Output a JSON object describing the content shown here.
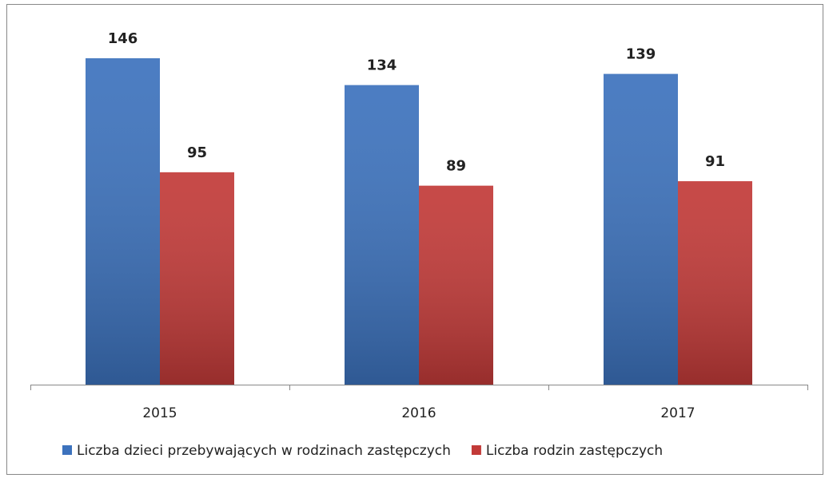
{
  "chart_data": {
    "type": "bar",
    "categories": [
      "2015",
      "2016",
      "2017"
    ],
    "series": [
      {
        "name": "Liczba dzieci przebywających w rodzinach zastępczych",
        "color": "#3c72bd",
        "values": [
          146,
          134,
          139
        ]
      },
      {
        "name": "Liczba rodzin zastępczych",
        "color": "#c23a38",
        "values": [
          95,
          89,
          91
        ]
      }
    ],
    "legend": "bottom"
  }
}
